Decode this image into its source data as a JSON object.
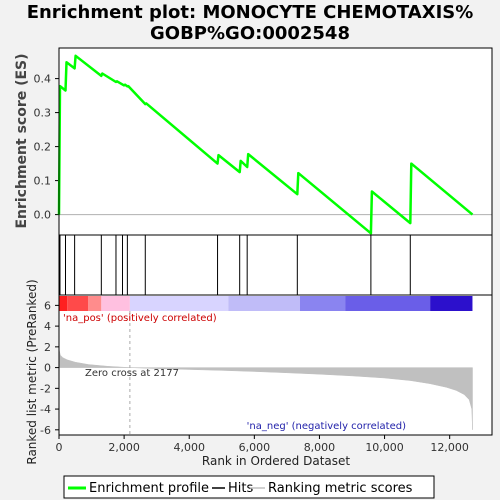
{
  "chart_data": {
    "type": "line",
    "title_lines": [
      "Enrichment plot: MONOCYTE CHEMOTAXIS%",
      "GOBP%GO:0002548"
    ],
    "xlabel": "Rank in Ordered Dataset",
    "ylabel_top": "Enrichment score (ES)",
    "ylabel_bottom": "Ranked list metric (PreRanked)",
    "xlim": [
      0,
      13300
    ],
    "x_ticks": [
      0,
      2000,
      4000,
      6000,
      8000,
      10000,
      12000
    ],
    "x_tick_labels": [
      "0",
      "2,000",
      "4,000",
      "6,000",
      "8,000",
      "10,000",
      "12,000"
    ],
    "es_ylim": [
      -0.06,
      0.49
    ],
    "es_ticks": [
      0.0,
      0.1,
      0.2,
      0.3,
      0.4
    ],
    "es_tick_labels": [
      "0.0",
      "0.1",
      "0.2",
      "0.3",
      "0.4"
    ],
    "metric_ylim": [
      -6.5,
      7
    ],
    "metric_ticks": [
      6,
      4,
      2,
      0,
      -2,
      -4,
      -6
    ],
    "metric_tick_labels": [
      "6",
      "4",
      "2",
      "0",
      "-2",
      "-4",
      "-6"
    ],
    "es_profile": {
      "x": [
        0,
        30,
        200,
        230,
        480,
        510,
        1300,
        1330,
        1750,
        1780,
        2000,
        2030,
        2100,
        2130,
        2650,
        2680,
        4870,
        4900,
        5550,
        5580,
        5780,
        5810,
        7320,
        7350,
        9580,
        9610,
        10790,
        10820,
        12700
      ],
      "y": [
        0.0,
        0.378,
        0.365,
        0.448,
        0.43,
        0.467,
        0.408,
        0.415,
        0.39,
        0.392,
        0.38,
        0.382,
        0.377,
        0.378,
        0.325,
        0.327,
        0.15,
        0.175,
        0.125,
        0.158,
        0.14,
        0.178,
        0.06,
        0.122,
        -0.055,
        0.068,
        -0.025,
        0.15,
        0.0
      ]
    },
    "hits": [
      30,
      200,
      480,
      1300,
      1750,
      1950,
      2100,
      2650,
      4870,
      5550,
      5780,
      7320,
      9580,
      10790
    ],
    "zero_cross_label": "Zero cross at 2177",
    "zero_cross": 2177,
    "pos_label": "'na_pos' (positively correlated)",
    "neg_label": "'na_neg' (negatively correlated)",
    "heat_segments": [
      {
        "from": 0,
        "to": 250,
        "color": "#ff2020"
      },
      {
        "from": 250,
        "to": 900,
        "color": "#ff4a4a"
      },
      {
        "from": 900,
        "to": 1300,
        "color": "#ff8c8c"
      },
      {
        "from": 1300,
        "to": 2177,
        "color": "#ffc0e0"
      },
      {
        "from": 2177,
        "to": 5200,
        "color": "#d8d4ff"
      },
      {
        "from": 5200,
        "to": 7400,
        "color": "#c0bcf8"
      },
      {
        "from": 7400,
        "to": 8800,
        "color": "#8a84f0"
      },
      {
        "from": 8800,
        "to": 11400,
        "color": "#6a5ee8"
      },
      {
        "from": 11400,
        "to": 12700,
        "color": "#2c10cc"
      }
    ],
    "metric_curve": {
      "x": [
        0,
        40,
        120,
        250,
        500,
        900,
        1500,
        2177,
        3000,
        4000,
        5000,
        6000,
        7000,
        8000,
        9000,
        10000,
        10800,
        11400,
        11900,
        12200,
        12450,
        12600,
        12680,
        12700
      ],
      "y": [
        1.8,
        1.2,
        0.95,
        0.75,
        0.52,
        0.3,
        0.12,
        0.0,
        -0.1,
        -0.18,
        -0.27,
        -0.38,
        -0.5,
        -0.64,
        -0.8,
        -1.0,
        -1.25,
        -1.55,
        -1.9,
        -2.2,
        -2.6,
        -3.1,
        -4.0,
        -6.0
      ]
    },
    "legend": [
      "Enrichment profile",
      "Hits",
      "Ranking metric scores"
    ],
    "colors": {
      "profile": "#00ff00",
      "hits": "#000000",
      "metric": "#c0c0c0",
      "pos_text": "#cc0000",
      "neg_text": "#2222aa",
      "zero_line": "#b0b0b0"
    }
  }
}
